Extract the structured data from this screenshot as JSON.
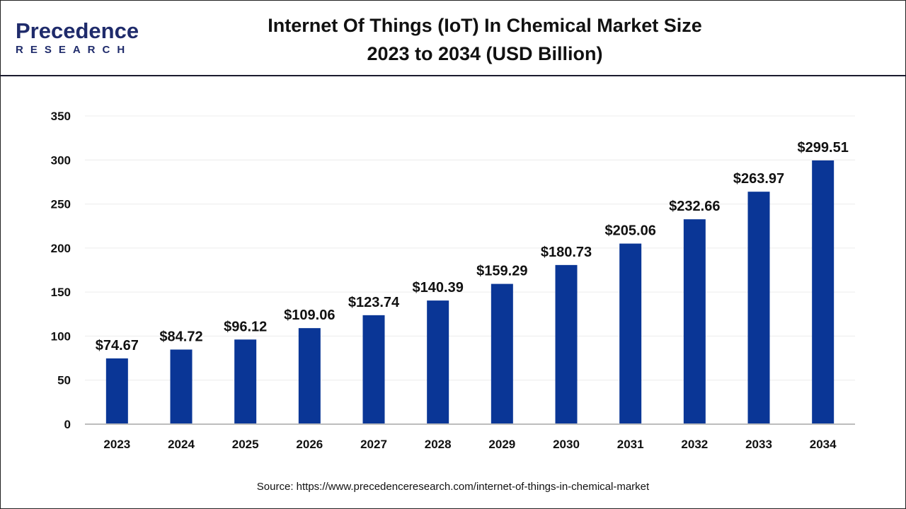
{
  "logo": {
    "brand": "Precedence",
    "sub": "RESEARCH"
  },
  "title_line1": "Internet Of Things (IoT) In Chemical Market Size",
  "title_line2": "2023 to 2034 (USD Billion)",
  "source": "Source: https://www.precedenceresearch.com/internet-of-things-in-chemical-market",
  "chart_data": {
    "type": "bar",
    "title": "Internet Of Things (IoT) In Chemical Market Size 2023 to 2034 (USD Billion)",
    "categories": [
      "2023",
      "2024",
      "2025",
      "2026",
      "2027",
      "2028",
      "2029",
      "2030",
      "2031",
      "2032",
      "2033",
      "2034"
    ],
    "values": [
      74.67,
      84.72,
      96.12,
      109.06,
      123.74,
      140.39,
      159.29,
      180.73,
      205.06,
      232.66,
      263.97,
      299.51
    ],
    "data_labels": [
      "$74.67",
      "$84.72",
      "$96.12",
      "$109.06",
      "$123.74",
      "$140.39",
      "$159.29",
      "$180.73",
      "$205.06",
      "$232.66",
      "$263.97",
      "$299.51"
    ],
    "ylim": [
      0,
      350
    ],
    "yticks": [
      0,
      50,
      100,
      150,
      200,
      250,
      300,
      350
    ],
    "xlabel": "",
    "ylabel": "",
    "grid": true,
    "bar_color": "#0a3696"
  }
}
